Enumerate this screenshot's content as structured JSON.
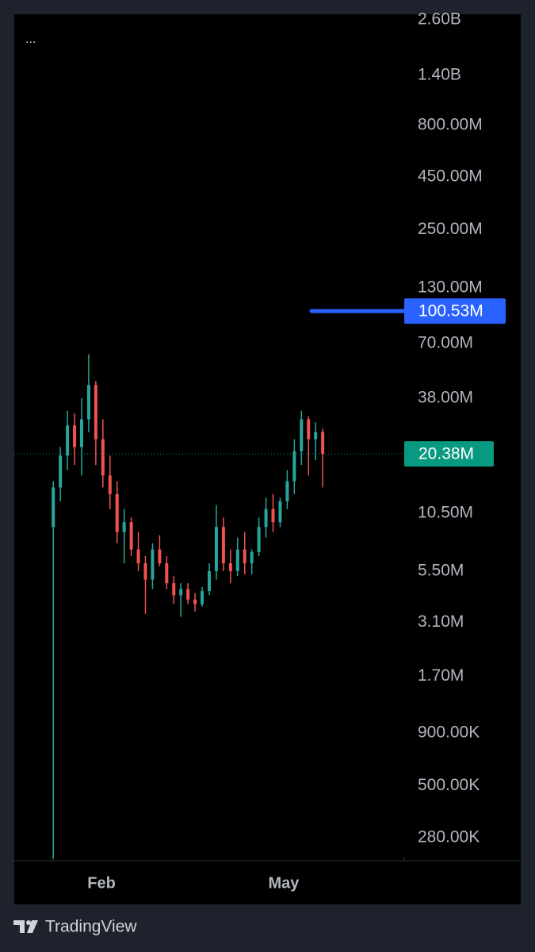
{
  "chart_data": {
    "type": "candlestick",
    "menu": "...",
    "brand": "TradingView",
    "log_scale": true,
    "up_color": "#26a69a",
    "down_color": "#ef5350",
    "open": [
      9000000,
      14000000,
      20000000,
      28000000,
      22000000,
      30000000,
      44000000,
      24000000,
      16000000,
      13000000,
      8500000,
      9500000,
      7000000,
      6000000,
      5000000,
      7000000,
      6000000,
      4800000,
      4200000,
      4500000,
      4000000,
      3800000,
      4400000,
      5500000,
      9000000,
      6000000,
      5500000,
      7000000,
      6000000,
      6800000,
      9000000,
      11000000,
      9500000,
      12000000,
      15000000,
      21000000,
      30000000,
      24000000,
      26000000
    ],
    "high": [
      15000000,
      22000000,
      33000000,
      32000000,
      38000000,
      62000000,
      46000000,
      30000000,
      20000000,
      15000000,
      11000000,
      10000000,
      8500000,
      6500000,
      7500000,
      8200000,
      6500000,
      5200000,
      4800000,
      4800000,
      4300000,
      4600000,
      6000000,
      11500000,
      10000000,
      7000000,
      8000000,
      8500000,
      7000000,
      10000000,
      12500000,
      13000000,
      12500000,
      17000000,
      24000000,
      33000000,
      31000000,
      29000000,
      27000000
    ],
    "low": [
      220000,
      12000000,
      17000000,
      18000000,
      16000000,
      26000000,
      18000000,
      14000000,
      11000000,
      7500000,
      6000000,
      6500000,
      5500000,
      3400000,
      4500000,
      5800000,
      4500000,
      3800000,
      3300000,
      3800000,
      3500000,
      3700000,
      4200000,
      5000000,
      5500000,
      4800000,
      5200000,
      5300000,
      5300000,
      6500000,
      8000000,
      8500000,
      9000000,
      11000000,
      13000000,
      18000000,
      16000000,
      19000000,
      14000000
    ],
    "close": [
      14000000,
      20000000,
      28000000,
      22000000,
      30000000,
      44000000,
      24000000,
      16000000,
      13000000,
      8500000,
      9500000,
      7000000,
      6000000,
      5000000,
      7000000,
      6000000,
      4800000,
      4200000,
      4500000,
      4000000,
      3800000,
      4400000,
      5500000,
      9000000,
      6000000,
      5500000,
      7000000,
      6000000,
      6800000,
      9000000,
      11000000,
      9500000,
      12000000,
      15000000,
      21000000,
      30000000,
      24000000,
      26000000,
      20380000
    ],
    "xlim": [
      -5.5,
      49.5
    ],
    "xticks": [
      {
        "value": 6.8,
        "label": "Feb"
      },
      {
        "value": 32.5,
        "label": "May"
      }
    ],
    "ylim": [
      216000,
      2770000000
    ],
    "yticks": [
      {
        "value": 2600000000,
        "label": "2.60B"
      },
      {
        "value": 1400000000,
        "label": "1.40B"
      },
      {
        "value": 800000000,
        "label": "800.00M"
      },
      {
        "value": 450000000,
        "label": "450.00M"
      },
      {
        "value": 250000000,
        "label": "250.00M"
      },
      {
        "value": 130000000,
        "label": "130.00M"
      },
      {
        "value": 70000000,
        "label": "70.00M"
      },
      {
        "value": 38000000,
        "label": "38.00M"
      },
      {
        "value": 10500000,
        "label": "10.50M"
      },
      {
        "value": 5500000,
        "label": "5.50M"
      },
      {
        "value": 3100000,
        "label": "3.10M"
      },
      {
        "value": 1700000,
        "label": "1.70M"
      },
      {
        "value": 900000,
        "label": "900.00K"
      },
      {
        "value": 500000,
        "label": "500.00K"
      },
      {
        "value": 280000,
        "label": "280.00K"
      }
    ],
    "alert_line": {
      "value": 100530000,
      "label": "100.53M",
      "color": "#2962ff"
    },
    "last_price": {
      "value": 20380000,
      "label": "20.38M",
      "color": "#089981"
    }
  }
}
